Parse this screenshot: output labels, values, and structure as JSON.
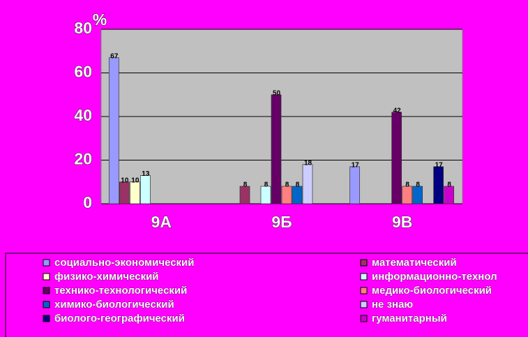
{
  "chart_data": {
    "type": "bar",
    "y_label": "%",
    "categories": [
      "9А",
      "9Б",
      "9В"
    ],
    "ylim": [
      0,
      80
    ],
    "yticks": [
      0,
      20,
      40,
      60,
      80
    ],
    "grid": true,
    "series": [
      {
        "name": "социально-экономический",
        "color": "#9999ff",
        "values": [
          67,
          null,
          17
        ]
      },
      {
        "name": "математический",
        "color": "#993366",
        "values": [
          10,
          8,
          null
        ]
      },
      {
        "name": "физико-химический",
        "color": "#ffffcc",
        "values": [
          10,
          null,
          null
        ]
      },
      {
        "name": "информационно-технол",
        "color": "#ccffff",
        "values": [
          13,
          8,
          null
        ]
      },
      {
        "name": "технико-технологический",
        "color": "#660066",
        "values": [
          null,
          50,
          42
        ]
      },
      {
        "name": "медико-биологический",
        "color": "#ff8080",
        "values": [
          null,
          8,
          8
        ]
      },
      {
        "name": "химико-биологический",
        "color": "#0066cc",
        "values": [
          null,
          8,
          8
        ]
      },
      {
        "name": "не знаю",
        "color": "#ccccff",
        "values": [
          null,
          18,
          null
        ]
      },
      {
        "name": "биолого-географический",
        "color": "#000080",
        "values": [
          null,
          null,
          17
        ]
      },
      {
        "name": "гуманитарный",
        "color": "#cc00cc",
        "values": [
          null,
          null,
          8
        ]
      }
    ]
  }
}
